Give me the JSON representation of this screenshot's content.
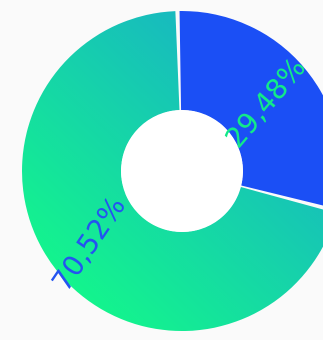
{
  "chart_data": {
    "type": "pie",
    "variant": "donut",
    "categories": [
      "",
      ""
    ],
    "values": [
      70.52,
      29.48
    ],
    "labels": [
      "70,52%",
      "29,48%"
    ],
    "colors": {
      "slice_main_gradient": [
        "#13f58c",
        "#19a7cf"
      ],
      "slice_secondary": "#1b4ff5",
      "label_main": "#2454f0",
      "label_secondary": "#12e989",
      "background": "#fafafa",
      "hole": "#ffffff"
    }
  }
}
